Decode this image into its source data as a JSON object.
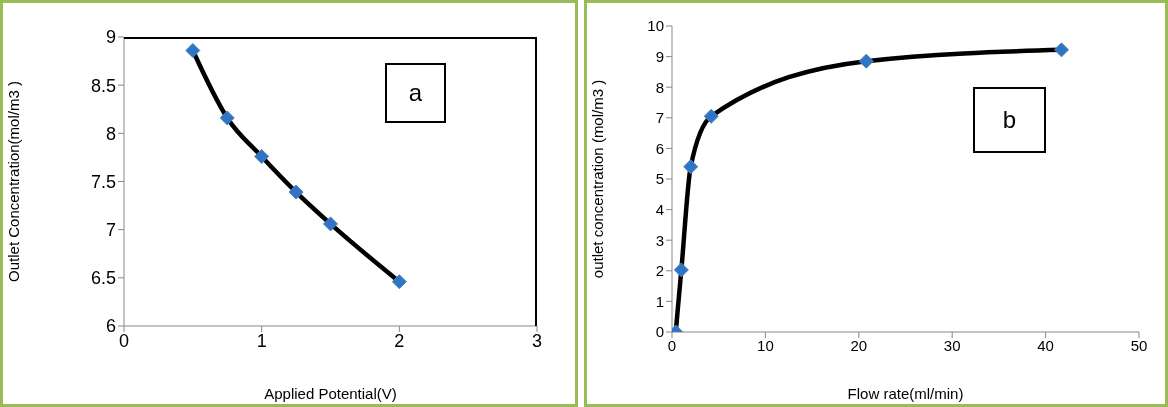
{
  "chart_data": [
    {
      "type": "line",
      "xlabel": "Applied Potential(V)",
      "ylabel": "Outlet Concentration(mol/m3 )",
      "annotations": [
        "a"
      ],
      "x": [
        0.5,
        0.75,
        1,
        1.25,
        1.5,
        2
      ],
      "series": [
        {
          "color": "#000000",
          "values": [
            8.86,
            8.16,
            7.76,
            7.39,
            7.06,
            6.46
          ]
        }
      ],
      "xlim": [
        0,
        3
      ],
      "xticks": [
        0,
        1,
        2,
        3
      ],
      "ylim": [
        6,
        9
      ],
      "yticks": [
        6,
        6.5,
        7,
        7.5,
        8,
        8.5,
        9
      ],
      "marker": "diamond",
      "grid": false,
      "legend": false
    },
    {
      "type": "line",
      "xlabel": "Flow rate(ml/min)",
      "ylabel": "outlet concentration (mol/m3 )",
      "annotations": [
        "b"
      ],
      "x": [
        0.4,
        1,
        2,
        4.2,
        20.8,
        41.7
      ],
      "series": [
        {
          "color": "#000000",
          "values": [
            0,
            2.03,
            5.4,
            7.05,
            8.85,
            9.22
          ]
        }
      ],
      "xlim": [
        0,
        50
      ],
      "xticks": [
        0,
        10,
        20,
        30,
        40,
        50
      ],
      "ylim": [
        0,
        10
      ],
      "yticks": [
        0,
        1,
        2,
        3,
        4,
        5,
        6,
        7,
        8,
        9,
        10
      ],
      "marker": "diamond",
      "grid": false,
      "legend": false
    }
  ]
}
